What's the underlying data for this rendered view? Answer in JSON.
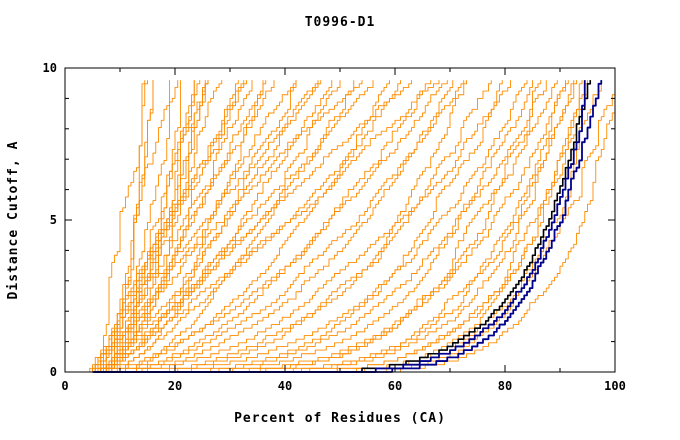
{
  "chart_data": {
    "type": "line",
    "title": "T0996-D1",
    "xlabel": "Percent of Residues (CA)",
    "ylabel": "Distance Cutoff, A",
    "xlim": [
      0,
      100
    ],
    "ylim": [
      0,
      10
    ],
    "x_major_ticks": [
      0,
      20,
      40,
      60,
      80,
      100
    ],
    "x_minor_ticks": [
      10,
      30,
      50,
      70,
      90
    ],
    "y_major_ticks": [
      0,
      5,
      10
    ],
    "y_minor_ticks": [
      1,
      2,
      3,
      4,
      6,
      7,
      8,
      9
    ],
    "grid": false,
    "legend": null,
    "colors": {
      "prediction": "#FF8C00",
      "highlight_navy": "#00008B",
      "highlight_black": "#000000",
      "frame": "#000000",
      "background": "#FFFFFF"
    },
    "series_format": [
      "x_start_percent",
      "x_at_top_percent",
      "shape_exponent"
    ],
    "y_top_drawn": 9.6,
    "predictions": [
      [
        4.5,
        15,
        0.55
      ],
      [
        5,
        16,
        0.5
      ],
      [
        5.5,
        17,
        0.6
      ],
      [
        6,
        18,
        0.45
      ],
      [
        6.5,
        19,
        0.65
      ],
      [
        7,
        20,
        0.55
      ],
      [
        7.5,
        21,
        0.7
      ],
      [
        4.5,
        22,
        0.5
      ],
      [
        5,
        23,
        0.8
      ],
      [
        5.5,
        24,
        0.6
      ],
      [
        6,
        25,
        0.9
      ],
      [
        6.5,
        26,
        0.55
      ],
      [
        7,
        27,
        0.75
      ],
      [
        7.5,
        28,
        0.65
      ],
      [
        4.5,
        30,
        0.85
      ],
      [
        5,
        31,
        0.6
      ],
      [
        5.5,
        32,
        1.0
      ],
      [
        6,
        34,
        0.7
      ],
      [
        6.5,
        35,
        0.95
      ],
      [
        7,
        36,
        0.55
      ],
      [
        7.5,
        38,
        0.8
      ],
      [
        4.5,
        40,
        1.0
      ],
      [
        5,
        42,
        0.65
      ],
      [
        5.5,
        44,
        0.85
      ],
      [
        6,
        46,
        1.1
      ],
      [
        6.5,
        48,
        0.75
      ],
      [
        7,
        50,
        0.95
      ],
      [
        7.5,
        52,
        0.6
      ],
      [
        4.5,
        54,
        1.05
      ],
      [
        5,
        56,
        0.8
      ],
      [
        5.5,
        58,
        0.5
      ],
      [
        6,
        60,
        0.9
      ],
      [
        6.5,
        62,
        0.7
      ],
      [
        7,
        64,
        1.1
      ],
      [
        7.5,
        66,
        0.55
      ],
      [
        4.5,
        68,
        0.85
      ],
      [
        5,
        70,
        0.45
      ],
      [
        5.5,
        72,
        0.65
      ],
      [
        6,
        74,
        0.35
      ],
      [
        6.5,
        76,
        0.55
      ],
      [
        7,
        78,
        0.4
      ],
      [
        7.5,
        80,
        0.3
      ],
      [
        4.5,
        82,
        0.45
      ],
      [
        5,
        84,
        0.25
      ],
      [
        5.5,
        85,
        0.35
      ],
      [
        6,
        87,
        0.22
      ],
      [
        6.5,
        88,
        0.3
      ],
      [
        7,
        90,
        0.2
      ],
      [
        7.5,
        91,
        0.26
      ],
      [
        4.5,
        92,
        0.18
      ],
      [
        5,
        93,
        0.24
      ],
      [
        5.5,
        94,
        0.16
      ],
      [
        6,
        95,
        0.2
      ],
      [
        6.5,
        96,
        0.14
      ],
      [
        7,
        97,
        0.17
      ],
      [
        7.5,
        98,
        0.13
      ],
      [
        4.5,
        99,
        0.15
      ],
      [
        5,
        100,
        0.12
      ]
    ],
    "navy_models": [
      [
        5,
        96.5,
        0.13
      ],
      [
        5.5,
        97.5,
        0.12
      ]
    ],
    "black_model": [
      [
        5.2,
        96,
        0.14
      ]
    ]
  }
}
